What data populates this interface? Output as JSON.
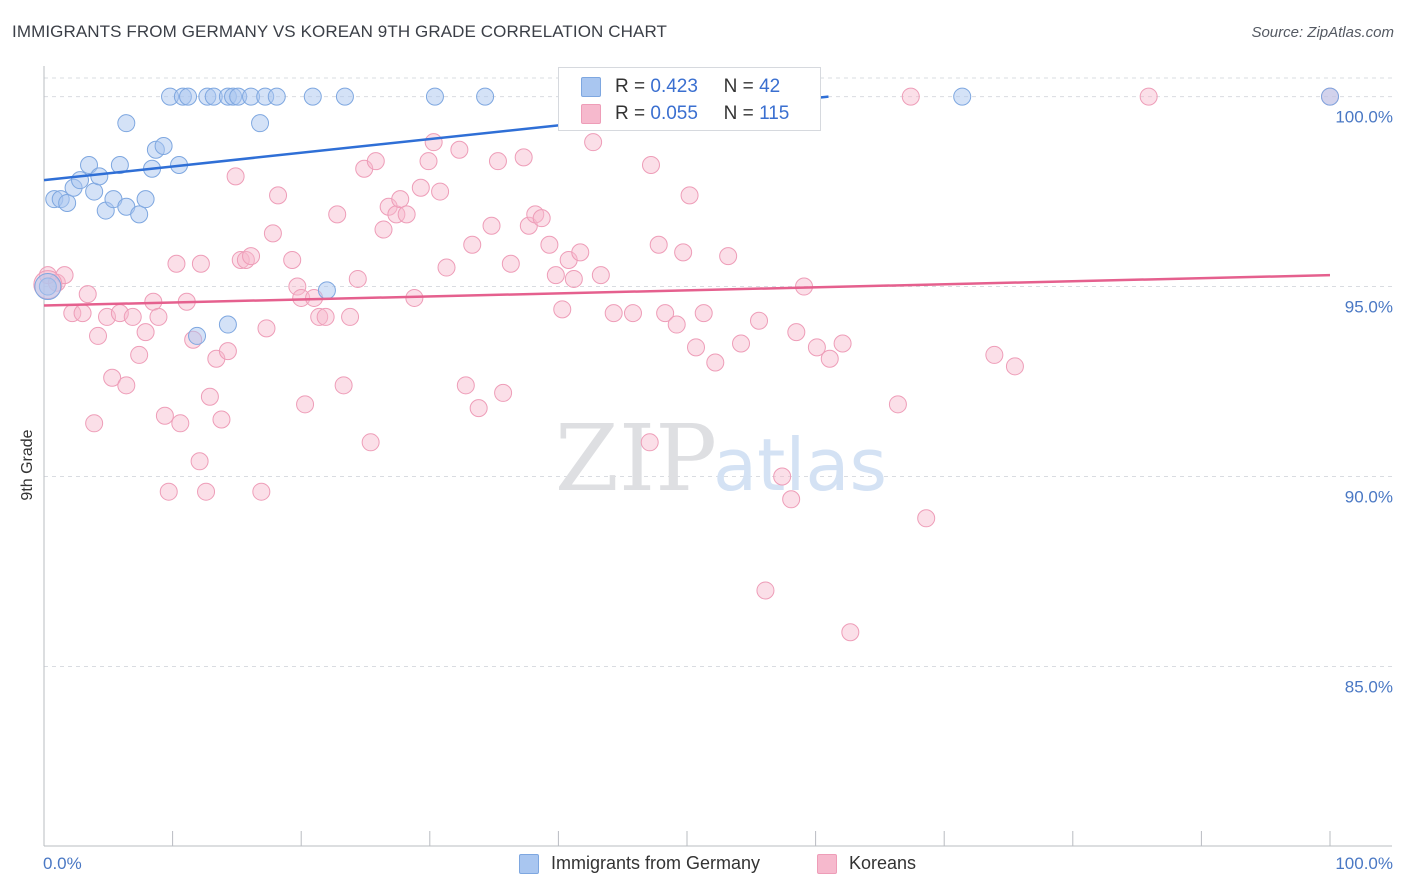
{
  "title": "IMMIGRANTS FROM GERMANY VS KOREAN 9TH GRADE CORRELATION CHART",
  "source": "Source: ZipAtlas.com",
  "watermark": {
    "zip": "ZIP",
    "atlas": "atlas"
  },
  "legend_top": [
    {
      "r_label": "R =",
      "r_value": "0.423",
      "n_label": "N =",
      "n_value": "42"
    },
    {
      "r_label": "R =",
      "r_value": "0.055",
      "n_label": "N =",
      "n_value": "115"
    }
  ],
  "legend_bottom": [
    {
      "label": "Immigrants from Germany"
    },
    {
      "label": "Koreans"
    }
  ],
  "colors": {
    "germany_fill": "#a9c6f0",
    "germany_stroke": "#7ea7e0",
    "germany_line": "#2f6fd6",
    "korean_fill": "#f6b9cd",
    "korean_stroke": "#ee9db8",
    "korean_line": "#e5608e",
    "tick_text": "#4a78c4"
  },
  "chart_data": {
    "type": "scatter",
    "title": "IMMIGRANTS FROM GERMANY VS KOREAN 9TH GRADE CORRELATION CHART",
    "xlabel": "",
    "ylabel": "9th Grade",
    "xlim": [
      0,
      100
    ],
    "ylim": [
      80.3,
      100.7
    ],
    "x_tick_labels": [
      "0.0%",
      "100.0%"
    ],
    "y_ticks": [
      {
        "value": 100,
        "label": "100.0%"
      },
      {
        "value": 95,
        "label": "95.0%"
      },
      {
        "value": 90,
        "label": "90.0%"
      },
      {
        "value": 85,
        "label": "85.0%"
      }
    ],
    "grid": true,
    "series": [
      {
        "name": "Immigrants from Germany",
        "R": 0.423,
        "N": 42,
        "trend": {
          "x0": 0,
          "y0": 97.8,
          "x1": 61,
          "y1": 100.0
        },
        "points": [
          [
            0.3,
            95.0
          ],
          [
            0.8,
            97.3
          ],
          [
            1.3,
            97.3
          ],
          [
            1.8,
            97.2
          ],
          [
            2.3,
            97.6
          ],
          [
            2.8,
            97.8
          ],
          [
            3.5,
            98.2
          ],
          [
            3.9,
            97.5
          ],
          [
            4.3,
            97.9
          ],
          [
            4.8,
            97.0
          ],
          [
            5.4,
            97.3
          ],
          [
            6.4,
            99.3
          ],
          [
            5.9,
            98.2
          ],
          [
            6.4,
            97.1
          ],
          [
            7.4,
            96.9
          ],
          [
            7.9,
            97.3
          ],
          [
            8.4,
            98.1
          ],
          [
            8.7,
            98.6
          ],
          [
            9.3,
            98.7
          ],
          [
            10.5,
            98.2
          ],
          [
            9.8,
            100
          ],
          [
            10.8,
            100
          ],
          [
            11.2,
            100
          ],
          [
            12.7,
            100
          ],
          [
            13.2,
            100
          ],
          [
            14.3,
            100
          ],
          [
            14.7,
            100
          ],
          [
            15.1,
            100
          ],
          [
            16.1,
            100
          ],
          [
            17.2,
            100
          ],
          [
            18.1,
            100
          ],
          [
            16.8,
            99.3
          ],
          [
            20.9,
            100
          ],
          [
            23.4,
            100
          ],
          [
            30.4,
            100
          ],
          [
            34.3,
            100
          ],
          [
            40.9,
            100
          ],
          [
            11.9,
            93.7
          ],
          [
            14.3,
            94.0
          ],
          [
            22.0,
            94.9
          ],
          [
            71.4,
            100
          ],
          [
            100,
            100
          ]
        ]
      },
      {
        "name": "Koreans",
        "R": 0.055,
        "N": 115,
        "trend": {
          "x0": 0,
          "y0": 94.5,
          "x1": 100,
          "y1": 95.3
        },
        "points": [
          [
            0.3,
            95.3
          ],
          [
            1.0,
            95.1
          ],
          [
            1.6,
            95.3
          ],
          [
            2.2,
            94.3
          ],
          [
            3.0,
            94.3
          ],
          [
            3.4,
            94.8
          ],
          [
            3.9,
            91.4
          ],
          [
            4.2,
            93.7
          ],
          [
            4.9,
            94.2
          ],
          [
            5.3,
            92.6
          ],
          [
            5.9,
            94.3
          ],
          [
            6.4,
            92.4
          ],
          [
            6.9,
            94.2
          ],
          [
            7.4,
            93.2
          ],
          [
            7.9,
            93.8
          ],
          [
            8.5,
            94.6
          ],
          [
            8.9,
            94.2
          ],
          [
            9.4,
            91.6
          ],
          [
            9.7,
            89.6
          ],
          [
            10.3,
            95.6
          ],
          [
            10.6,
            91.4
          ],
          [
            11.1,
            94.6
          ],
          [
            11.6,
            93.6
          ],
          [
            12.1,
            90.4
          ],
          [
            12.6,
            89.6
          ],
          [
            12.9,
            92.1
          ],
          [
            13.4,
            93.1
          ],
          [
            13.8,
            91.5
          ],
          [
            14.3,
            93.3
          ],
          [
            14.9,
            97.9
          ],
          [
            15.3,
            95.7
          ],
          [
            15.7,
            95.7
          ],
          [
            16.1,
            95.8
          ],
          [
            16.9,
            89.6
          ],
          [
            17.3,
            93.9
          ],
          [
            17.8,
            96.4
          ],
          [
            18.2,
            97.4
          ],
          [
            19.3,
            95.7
          ],
          [
            19.7,
            95.0
          ],
          [
            20.0,
            94.7
          ],
          [
            20.3,
            91.9
          ],
          [
            21.0,
            94.7
          ],
          [
            21.4,
            94.2
          ],
          [
            21.9,
            94.2
          ],
          [
            22.8,
            96.9
          ],
          [
            23.3,
            92.4
          ],
          [
            23.8,
            94.2
          ],
          [
            24.4,
            95.2
          ],
          [
            24.9,
            98.1
          ],
          [
            25.4,
            90.9
          ],
          [
            25.8,
            98.3
          ],
          [
            26.4,
            96.5
          ],
          [
            26.8,
            97.1
          ],
          [
            27.4,
            96.9
          ],
          [
            27.7,
            97.3
          ],
          [
            28.2,
            96.9
          ],
          [
            28.8,
            94.7
          ],
          [
            29.3,
            97.6
          ],
          [
            29.9,
            98.3
          ],
          [
            30.3,
            98.8
          ],
          [
            30.8,
            97.5
          ],
          [
            31.3,
            95.5
          ],
          [
            32.3,
            98.6
          ],
          [
            32.8,
            92.4
          ],
          [
            33.3,
            96.1
          ],
          [
            33.8,
            91.8
          ],
          [
            34.8,
            96.6
          ],
          [
            35.3,
            98.3
          ],
          [
            35.7,
            92.2
          ],
          [
            36.3,
            95.6
          ],
          [
            37.3,
            98.4
          ],
          [
            37.7,
            96.6
          ],
          [
            38.2,
            96.9
          ],
          [
            38.7,
            96.8
          ],
          [
            39.3,
            96.1
          ],
          [
            39.8,
            95.3
          ],
          [
            40.3,
            94.4
          ],
          [
            40.8,
            95.7
          ],
          [
            41.2,
            95.2
          ],
          [
            41.7,
            95.9
          ],
          [
            42.2,
            100
          ],
          [
            42.7,
            98.8
          ],
          [
            43.3,
            95.3
          ],
          [
            44.3,
            94.3
          ],
          [
            45.8,
            94.3
          ],
          [
            47.2,
            98.2
          ],
          [
            47.8,
            96.1
          ],
          [
            48.3,
            94.3
          ],
          [
            49.2,
            94.0
          ],
          [
            49.7,
            95.9
          ],
          [
            50.7,
            93.4
          ],
          [
            50.2,
            97.4
          ],
          [
            51.3,
            94.3
          ],
          [
            52.2,
            93.0
          ],
          [
            53.2,
            95.8
          ],
          [
            54.2,
            93.5
          ],
          [
            55.6,
            94.1
          ],
          [
            56.1,
            87.0
          ],
          [
            57.4,
            90.0
          ],
          [
            58.1,
            89.4
          ],
          [
            58.5,
            93.8
          ],
          [
            59.1,
            95.0
          ],
          [
            60.1,
            93.4
          ],
          [
            61.1,
            93.1
          ],
          [
            62.1,
            93.5
          ],
          [
            62.7,
            85.9
          ],
          [
            66.4,
            91.9
          ],
          [
            67.4,
            100
          ],
          [
            68.6,
            88.9
          ],
          [
            73.9,
            93.2
          ],
          [
            75.5,
            92.9
          ],
          [
            85.9,
            100
          ],
          [
            100,
            100
          ],
          [
            47.1,
            90.9
          ],
          [
            12.2,
            95.6
          ]
        ]
      }
    ]
  }
}
